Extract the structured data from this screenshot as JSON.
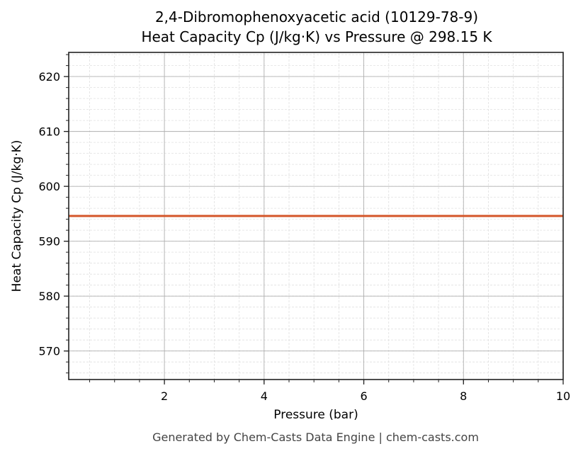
{
  "title_line1": "2,4-Dibromophenoxyacetic acid (10129-78-9)",
  "title_line2": "Heat Capacity Cp (J/kg·K) vs Pressure @ 298.15 K",
  "xlabel": "Pressure (bar)",
  "ylabel": "Heat Capacity Cp (J/kg·K)",
  "footer": "Generated by Chem-Casts Data Engine | chem-casts.com",
  "colors": {
    "line": "#d4562a",
    "grid_major": "#b0b0b0",
    "grid_minor": "#e0e0e0",
    "axis": "#222222"
  },
  "chart_data": {
    "type": "line",
    "title": "2,4-Dibromophenoxyacetic acid (10129-78-9)\nHeat Capacity Cp (J/kg·K) vs Pressure @ 298.15 K",
    "xlabel": "Pressure (bar)",
    "ylabel": "Heat Capacity Cp (J/kg·K)",
    "xlim": [
      0.08,
      10
    ],
    "ylim": [
      564.8,
      624.4
    ],
    "xticks": [
      2,
      4,
      6,
      8,
      10
    ],
    "yticks": [
      570,
      580,
      590,
      600,
      610,
      620
    ],
    "grid": true,
    "minor_grid": true,
    "legend": null,
    "series": [
      {
        "name": "Cp",
        "color": "#d4562a",
        "x": [
          0.08,
          1,
          2,
          3,
          4,
          5,
          6,
          7,
          8,
          9,
          10
        ],
        "values": [
          594.6,
          594.6,
          594.6,
          594.6,
          594.6,
          594.6,
          594.6,
          594.6,
          594.6,
          594.6,
          594.6
        ]
      }
    ]
  }
}
